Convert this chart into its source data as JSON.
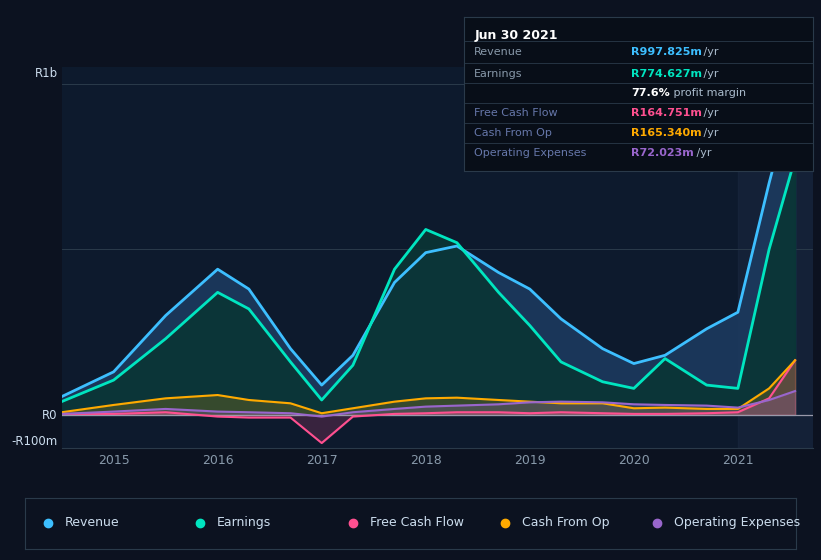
{
  "bg_color": "#0c1220",
  "chart_bg": "#0d1a2d",
  "ylim": [
    -100,
    1050
  ],
  "xlim": [
    2014.5,
    2021.72
  ],
  "xticks": [
    2015,
    2016,
    2017,
    2018,
    2019,
    2020,
    2021
  ],
  "x": [
    2014.5,
    2015.0,
    2015.5,
    2016.0,
    2016.3,
    2016.7,
    2017.0,
    2017.3,
    2017.7,
    2018.0,
    2018.3,
    2018.7,
    2019.0,
    2019.3,
    2019.7,
    2020.0,
    2020.3,
    2020.7,
    2021.0,
    2021.3,
    2021.55
  ],
  "revenue": [
    55,
    130,
    300,
    440,
    380,
    200,
    90,
    180,
    400,
    490,
    510,
    430,
    380,
    290,
    200,
    155,
    180,
    260,
    310,
    700,
    998
  ],
  "earnings": [
    40,
    105,
    230,
    370,
    320,
    160,
    45,
    150,
    440,
    560,
    520,
    370,
    270,
    160,
    100,
    80,
    170,
    90,
    80,
    500,
    775
  ],
  "fcf": [
    3,
    3,
    8,
    -5,
    -8,
    -8,
    -85,
    -5,
    3,
    5,
    8,
    8,
    5,
    8,
    5,
    3,
    3,
    5,
    8,
    50,
    165
  ],
  "cash_op": [
    8,
    30,
    50,
    60,
    45,
    35,
    5,
    20,
    40,
    50,
    52,
    45,
    40,
    35,
    35,
    20,
    22,
    18,
    18,
    80,
    165
  ],
  "opex": [
    3,
    10,
    18,
    10,
    8,
    5,
    -5,
    8,
    18,
    25,
    28,
    32,
    38,
    40,
    38,
    32,
    30,
    28,
    22,
    45,
    72
  ],
  "revenue_line_color": "#3dbfff",
  "earnings_line_color": "#00e5c0",
  "fcf_color": "#ff5090",
  "cash_op_color": "#ffaa00",
  "opex_color": "#9966cc",
  "revenue_fill_color": "#1c3a5e",
  "earnings_fill_color": "#0a3535",
  "ylabel_top": "R1b",
  "ylabel_zero": "R0",
  "ylabel_bottom": "-R100m",
  "hline_color": "#2a3a4a",
  "zero_line_color": "#9999aa",
  "tick_color": "#8899aa",
  "info_bg": "#080e18",
  "info_border": "#2a3a4a",
  "info_date": "Jun 30 2021",
  "info_rows": [
    {
      "label": "Revenue",
      "label_color": "#8899aa",
      "value": "R997.825m",
      "value_color": "#3dbfff",
      "suffix": " /yr"
    },
    {
      "label": "Earnings",
      "label_color": "#8899aa",
      "value": "R774.627m",
      "value_color": "#00e5c0",
      "suffix": " /yr"
    },
    {
      "label": "",
      "label_color": "#8899aa",
      "value": "77.6%",
      "value_color": "#ffffff",
      "suffix": " profit margin"
    },
    {
      "label": "Free Cash Flow",
      "label_color": "#6677aa",
      "value": "R164.751m",
      "value_color": "#ff5090",
      "suffix": " /yr"
    },
    {
      "label": "Cash From Op",
      "label_color": "#6677aa",
      "value": "R165.340m",
      "value_color": "#ffaa00",
      "suffix": " /yr"
    },
    {
      "label": "Operating Expenses",
      "label_color": "#6677aa",
      "value": "R72.023m",
      "value_color": "#9966cc",
      "suffix": " /yr"
    }
  ],
  "legend": [
    {
      "label": "Revenue",
      "color": "#3dbfff"
    },
    {
      "label": "Earnings",
      "color": "#00e5c0"
    },
    {
      "label": "Free Cash Flow",
      "color": "#ff5090"
    },
    {
      "label": "Cash From Op",
      "color": "#ffaa00"
    },
    {
      "label": "Operating Expenses",
      "color": "#9966cc"
    }
  ]
}
